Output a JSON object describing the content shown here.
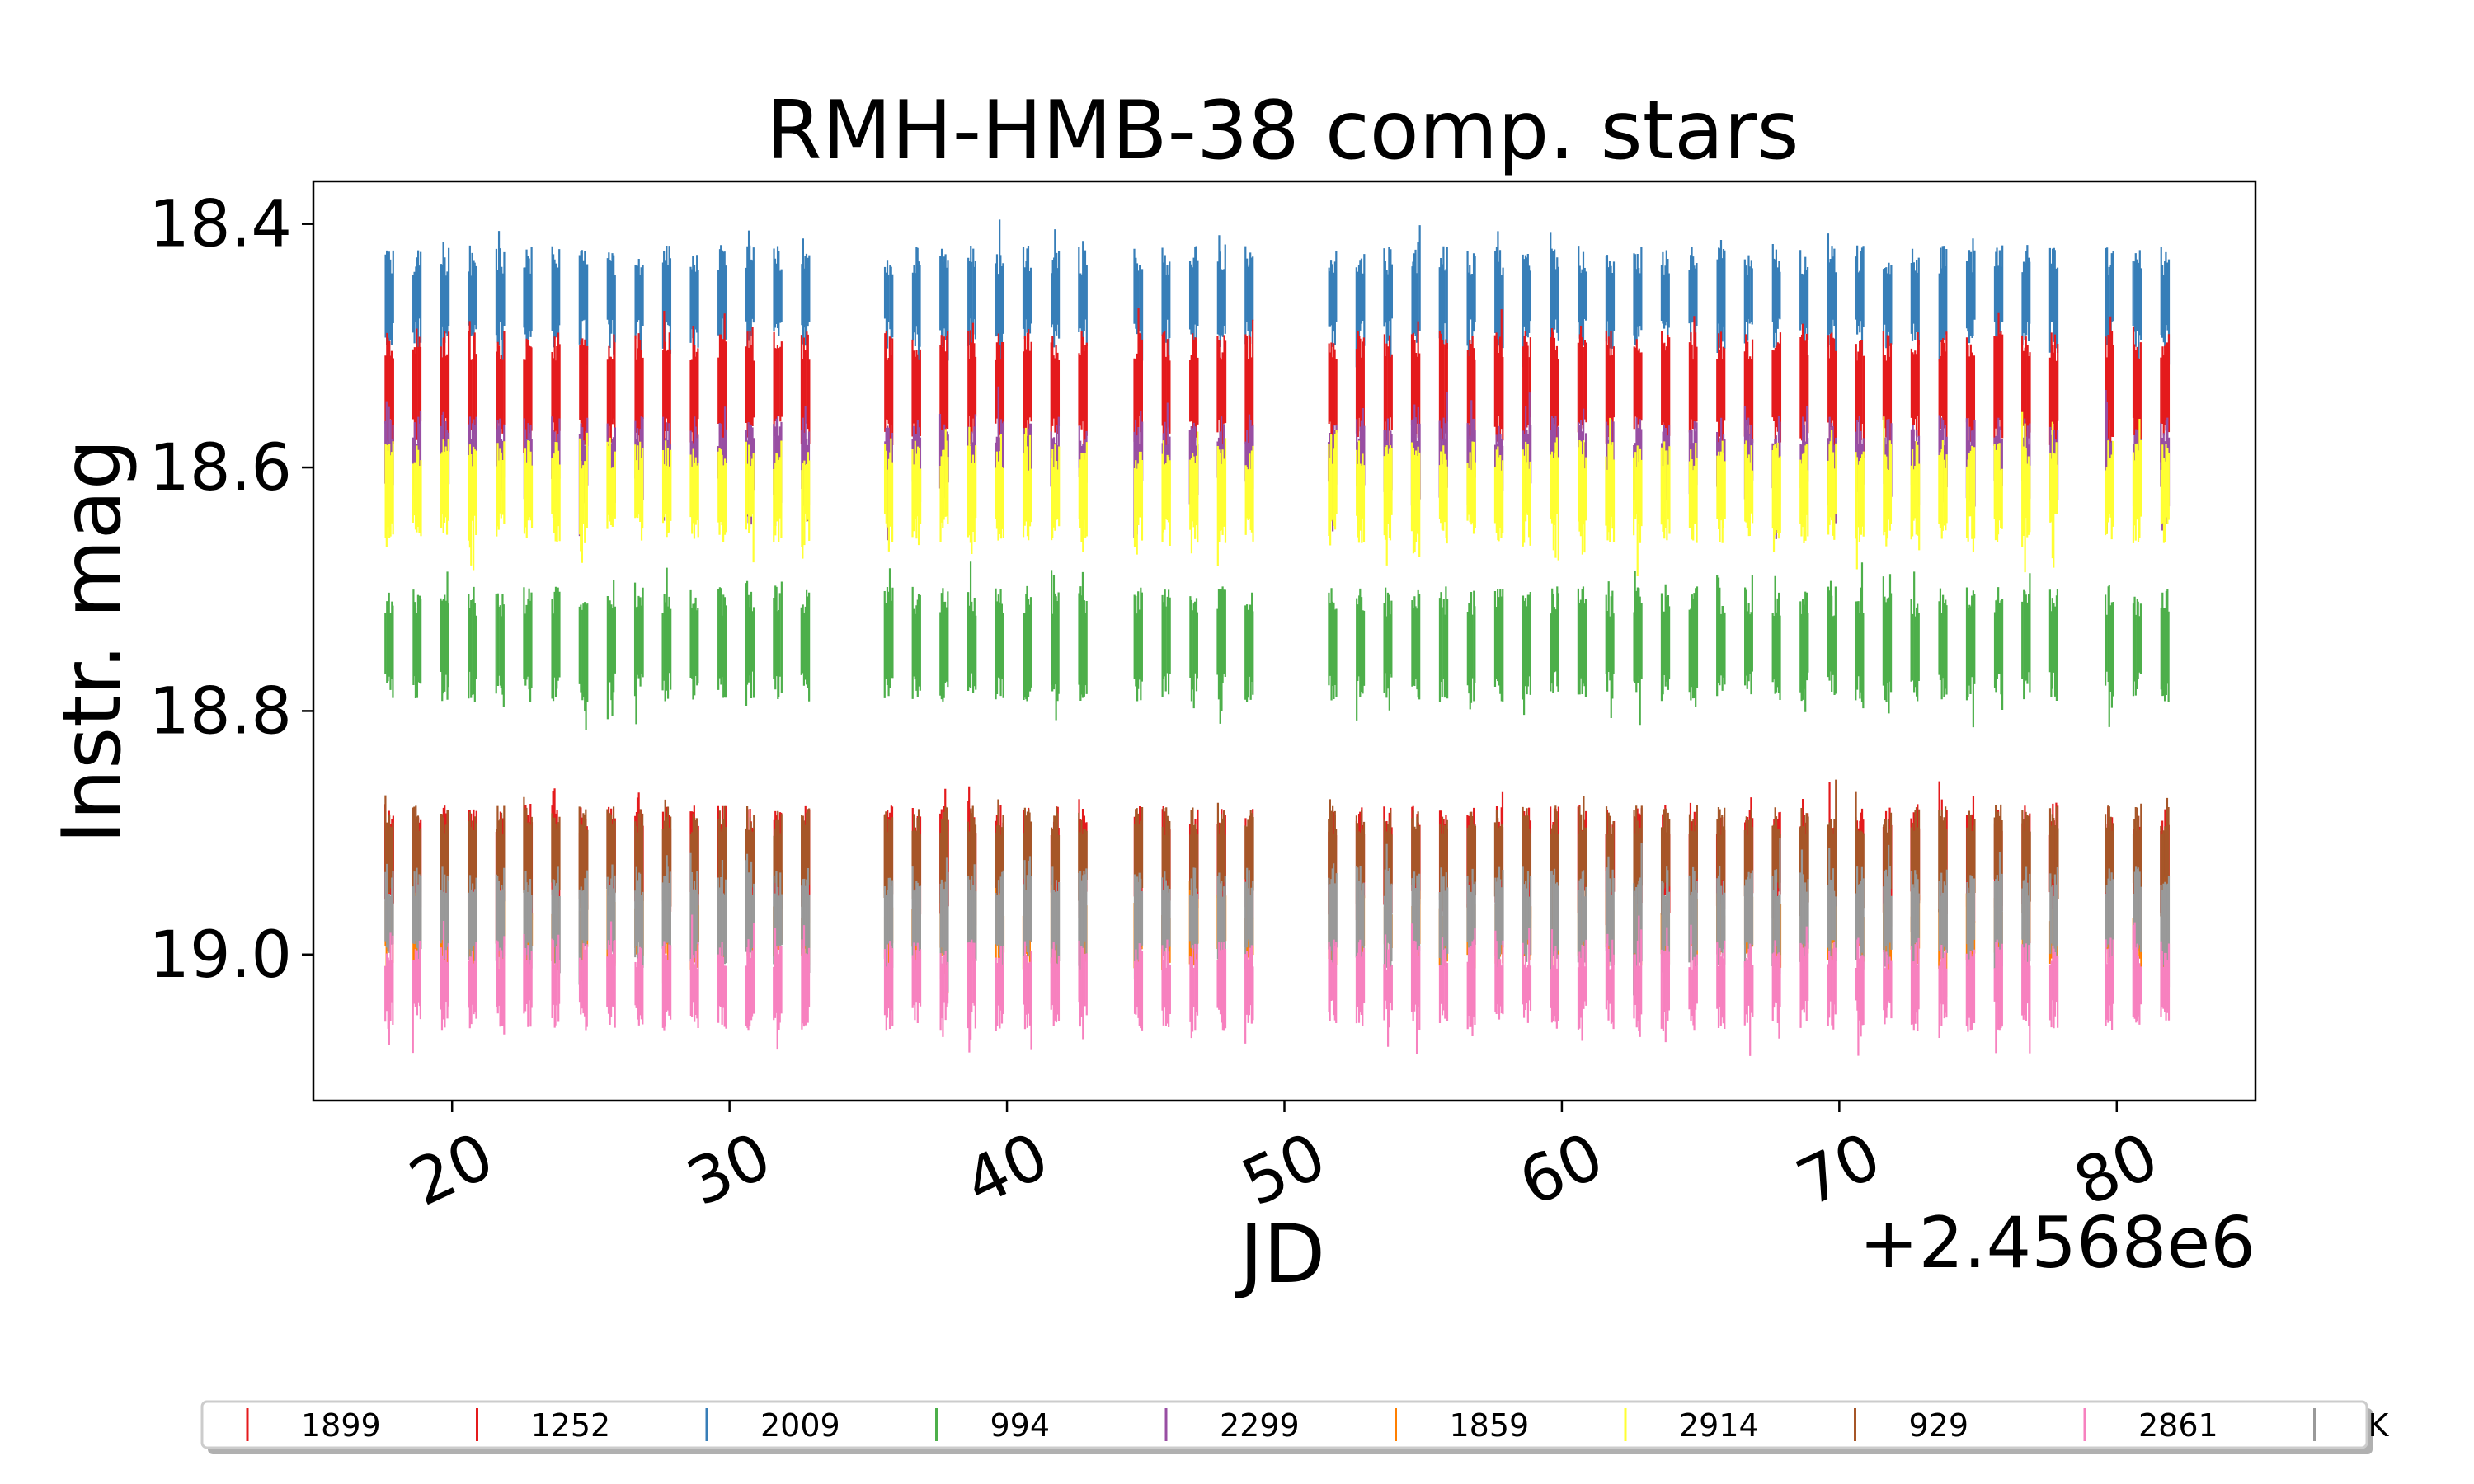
{
  "chart_data": {
    "type": "scatter",
    "title": "RMH-HMB-38 comp. stars",
    "xlabel": "JD",
    "ylabel": "Instr. mag",
    "x_offset_label": "+2.4568e6",
    "xlim": [
      15,
      85
    ],
    "ylim": [
      19.12,
      18.365
    ],
    "y_inverted": true,
    "x_ticks": [
      20,
      30,
      40,
      50,
      60,
      70,
      80
    ],
    "x_tick_labels": [
      "20",
      "30",
      "40",
      "50",
      "60",
      "70",
      "80"
    ],
    "y_ticks": [
      18.4,
      18.6,
      18.8,
      19.0
    ],
    "y_tick_labels": [
      "18.4",
      "18.6",
      "18.8",
      "19.0"
    ],
    "grid": false,
    "legend_position": "bottom",
    "observing_nights": [
      17.6,
      18.6,
      19.6,
      20.6,
      21.6,
      22.6,
      23.6,
      24.6,
      25.6,
      26.6,
      27.6,
      28.6,
      29.6,
      30.6,
      31.6,
      32.6,
      35.6,
      36.6,
      37.6,
      38.6,
      39.6,
      40.6,
      41.6,
      42.6,
      44.6,
      45.6,
      46.6,
      47.6,
      48.6,
      51.6,
      52.6,
      53.6,
      54.6,
      55.6,
      56.6,
      57.6,
      58.6,
      59.6,
      60.6,
      61.6,
      62.6,
      63.6,
      64.6,
      65.6,
      66.6,
      67.6,
      68.6,
      69.6,
      70.6,
      71.6,
      72.6,
      73.6,
      74.6,
      75.6,
      76.6,
      77.6,
      79.6,
      80.6,
      81.6
    ],
    "series": [
      {
        "name": "1899",
        "color": "#e41a1c",
        "mag_top": 18.89,
        "mag_bottom": 18.96
      },
      {
        "name": "1252",
        "color": "#e41a1c",
        "mag_top": 18.5,
        "mag_bottom": 18.57
      },
      {
        "name": "2009",
        "color": "#377eb8",
        "mag_top": 18.43,
        "mag_bottom": 18.49
      },
      {
        "name": "994",
        "color": "#4daf4a",
        "mag_top": 18.71,
        "mag_bottom": 18.78
      },
      {
        "name": "2299",
        "color": "#984ea3",
        "mag_top": 18.57,
        "mag_bottom": 18.62
      },
      {
        "name": "1859",
        "color": "#ff7f00",
        "mag_top": 18.96,
        "mag_bottom": 19.0
      },
      {
        "name": "2914",
        "color": "#ffff33",
        "mag_top": 18.59,
        "mag_bottom": 18.65
      },
      {
        "name": "929",
        "color": "#a65628",
        "mag_top": 18.89,
        "mag_bottom": 18.95
      },
      {
        "name": "2861",
        "color": "#f781bf",
        "mag_top": 19.0,
        "mag_bottom": 19.05
      },
      {
        "name": "K",
        "color": "#999999",
        "mag_top": 18.94,
        "mag_bottom": 19.0
      }
    ]
  }
}
